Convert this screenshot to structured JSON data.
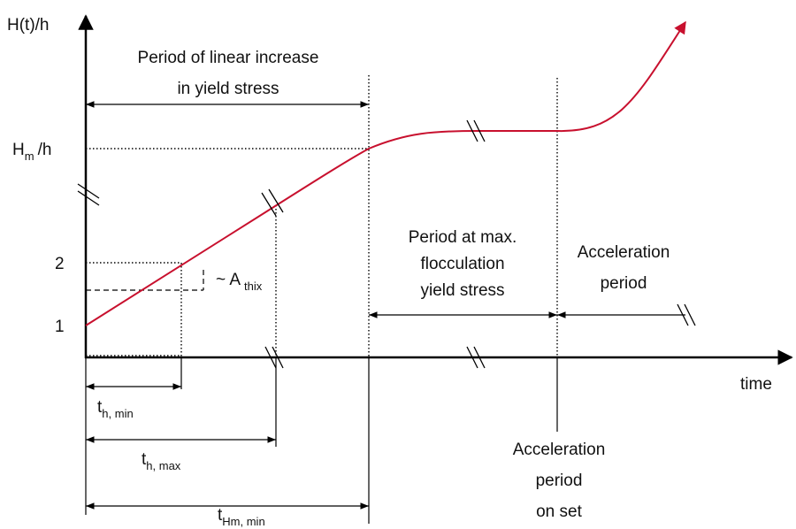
{
  "y_axis_label": "H(t)/h",
  "x_axis_label": "time",
  "y_levels": {
    "hm": {
      "main": "H",
      "sub": "m",
      "rest": "/h"
    },
    "two": "2",
    "one": "1"
  },
  "thix_label": {
    "main": "~ A",
    "sub": "thix"
  },
  "periods": {
    "linear": [
      "Period of linear increase",
      "in yield stress"
    ],
    "max_flocculation": [
      "Period at max.",
      "flocculation",
      "yield stress"
    ],
    "acceleration": [
      "Acceleration",
      "period"
    ]
  },
  "times": {
    "th_min": {
      "main": "t",
      "sub": "h, min"
    },
    "th_max": {
      "main": "t",
      "sub": "h, max"
    },
    "thm_min": {
      "main": "t",
      "sub": "Hm, min"
    }
  },
  "acceleration_onset": [
    "Acceleration",
    "period",
    "on set"
  ]
}
